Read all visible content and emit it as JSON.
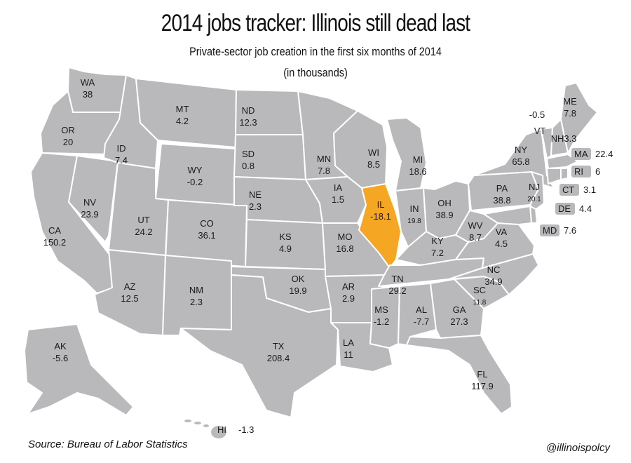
{
  "title": "2014 jobs tracker: Illinois still dead last",
  "subtitle": "Private-sector job creation in the first six months of 2014",
  "units": "(in thousands)",
  "source": "Source: Bureau of Labor Statistics",
  "handle": "@illinoispolcy",
  "colors": {
    "state": "#b9b9bb",
    "highlight": "#f5a623",
    "border": "#ffffff"
  },
  "highlight_state": "IL",
  "states": [
    {
      "abbr": "WA",
      "value": "38"
    },
    {
      "abbr": "OR",
      "value": "20"
    },
    {
      "abbr": "CA",
      "value": "150.2"
    },
    {
      "abbr": "NV",
      "value": "23.9"
    },
    {
      "abbr": "ID",
      "value": "7.4"
    },
    {
      "abbr": "MT",
      "value": "4.2"
    },
    {
      "abbr": "WY",
      "value": "-0.2"
    },
    {
      "abbr": "UT",
      "value": "24.2"
    },
    {
      "abbr": "CO",
      "value": "36.1"
    },
    {
      "abbr": "AZ",
      "value": "12.5"
    },
    {
      "abbr": "NM",
      "value": "2.3"
    },
    {
      "abbr": "ND",
      "value": "12.3"
    },
    {
      "abbr": "SD",
      "value": "0.8"
    },
    {
      "abbr": "NE",
      "value": "2.3"
    },
    {
      "abbr": "KS",
      "value": "4.9"
    },
    {
      "abbr": "OK",
      "value": "19.9"
    },
    {
      "abbr": "TX",
      "value": "208.4"
    },
    {
      "abbr": "MN",
      "value": "7.8"
    },
    {
      "abbr": "IA",
      "value": "1.5"
    },
    {
      "abbr": "MO",
      "value": "16.8"
    },
    {
      "abbr": "AR",
      "value": "2.9"
    },
    {
      "abbr": "LA",
      "value": "11"
    },
    {
      "abbr": "WI",
      "value": "8.5"
    },
    {
      "abbr": "IL",
      "value": "-18.1"
    },
    {
      "abbr": "MI",
      "value": "18.6"
    },
    {
      "abbr": "IN",
      "value": "19.8"
    },
    {
      "abbr": "OH",
      "value": "38.9"
    },
    {
      "abbr": "KY",
      "value": "7.2"
    },
    {
      "abbr": "TN",
      "value": "29.2"
    },
    {
      "abbr": "MS",
      "value": "-1.2"
    },
    {
      "abbr": "AL",
      "value": "-7.7"
    },
    {
      "abbr": "GA",
      "value": "27.3"
    },
    {
      "abbr": "FL",
      "value": "117.9"
    },
    {
      "abbr": "SC",
      "value": "11.8"
    },
    {
      "abbr": "NC",
      "value": "34.9"
    },
    {
      "abbr": "VA",
      "value": "4.5"
    },
    {
      "abbr": "WV",
      "value": "8.7"
    },
    {
      "abbr": "PA",
      "value": "38.8"
    },
    {
      "abbr": "NY",
      "value": "65.8"
    },
    {
      "abbr": "NJ",
      "value": "20.1"
    },
    {
      "abbr": "VT",
      "value": "-0.5"
    },
    {
      "abbr": "NH",
      "value": "3.3"
    },
    {
      "abbr": "ME",
      "value": "7.8"
    },
    {
      "abbr": "AK",
      "value": "-5.6"
    }
  ],
  "callouts": [
    {
      "abbr": "MA",
      "value": "22.4"
    },
    {
      "abbr": "RI",
      "value": "6"
    },
    {
      "abbr": "CT",
      "value": "3.1"
    },
    {
      "abbr": "DE",
      "value": "4.4"
    },
    {
      "abbr": "MD",
      "value": "7.6"
    },
    {
      "abbr": "HI",
      "value": "-1.3"
    }
  ]
}
